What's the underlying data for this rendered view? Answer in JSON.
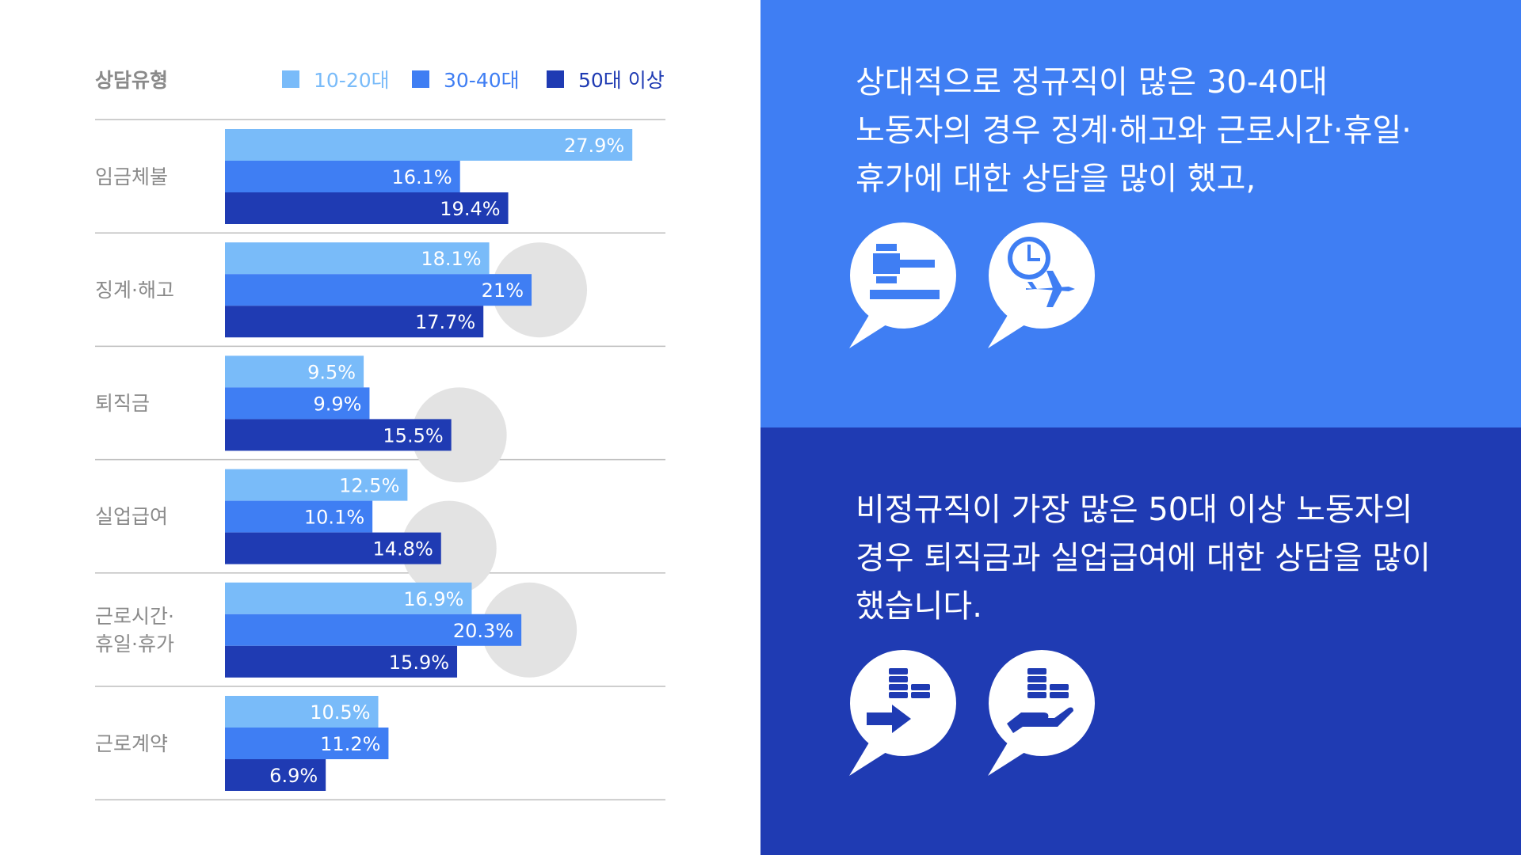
{
  "header": {
    "title": "상담유형"
  },
  "legend": [
    {
      "label": "10-20대",
      "color": "#79bbf9"
    },
    {
      "label": "30-40대",
      "color": "#3f7ef3"
    },
    {
      "label": "50대 이상",
      "color": "#1f3bb3"
    }
  ],
  "chart_data": {
    "type": "bar",
    "orientation": "horizontal",
    "title": "상담유형",
    "categories": [
      "임금체불",
      "징계·해고",
      "퇴직금",
      "실업급여",
      "근로시간·휴일·휴가",
      "근로계약"
    ],
    "category_lines": [
      [
        "임금체불"
      ],
      [
        "징계·해고"
      ],
      [
        "퇴직금"
      ],
      [
        "실업급여"
      ],
      [
        "근로시간·",
        "휴일·휴가"
      ],
      [
        "근로계약"
      ]
    ],
    "series": [
      {
        "name": "10-20대",
        "values": [
          27.9,
          18.1,
          9.5,
          12.5,
          16.9,
          10.5
        ],
        "labels": [
          "27.9%",
          "18.1%",
          "9.5%",
          "12.5%",
          "16.9%",
          "10.5%"
        ]
      },
      {
        "name": "30-40대",
        "values": [
          16.1,
          21,
          9.9,
          10.1,
          20.3,
          11.2
        ],
        "labels": [
          "16.1%",
          "21%",
          "9.9%",
          "10.1%",
          "20.3%",
          "11.2%"
        ]
      },
      {
        "name": "50대 이상",
        "values": [
          19.4,
          17.7,
          15.5,
          14.8,
          15.9,
          6.9
        ],
        "labels": [
          "19.4%",
          "17.7%",
          "15.5%",
          "14.8%",
          "15.9%",
          "6.9%"
        ]
      }
    ],
    "highlighted": [
      [
        1,
        1
      ],
      [
        2,
        2
      ],
      [
        3,
        2
      ],
      [
        4,
        1
      ]
    ],
    "colors": [
      "#79bbf9",
      "#3f7ef3",
      "#1f3bb3"
    ]
  },
  "messages": {
    "top": [
      "상대적으로 정규직이 많은 30-40대",
      "노동자의 경우 징계·해고와 근로시간·휴일·",
      "휴가에 대한 상담을 많이 했고,"
    ],
    "bottom": [
      "비정규직이 가장 많은 50대 이상 노동자의",
      "경우 퇴직금과 실업급여에 대한 상담을 많이",
      "했습니다."
    ]
  },
  "icons": {
    "top": [
      "gavel-icon",
      "clock-airplane-icon"
    ],
    "bottom": [
      "coins-arrow-icon",
      "coins-hand-icon"
    ]
  },
  "colors": {
    "right_top_bg": "#3f7ef3",
    "right_bottom_bg": "#1f3bb3",
    "highlight_circle": "#e3e3e3",
    "grid_line": "#bdbdbd",
    "label_text": "#8a8a8a"
  }
}
